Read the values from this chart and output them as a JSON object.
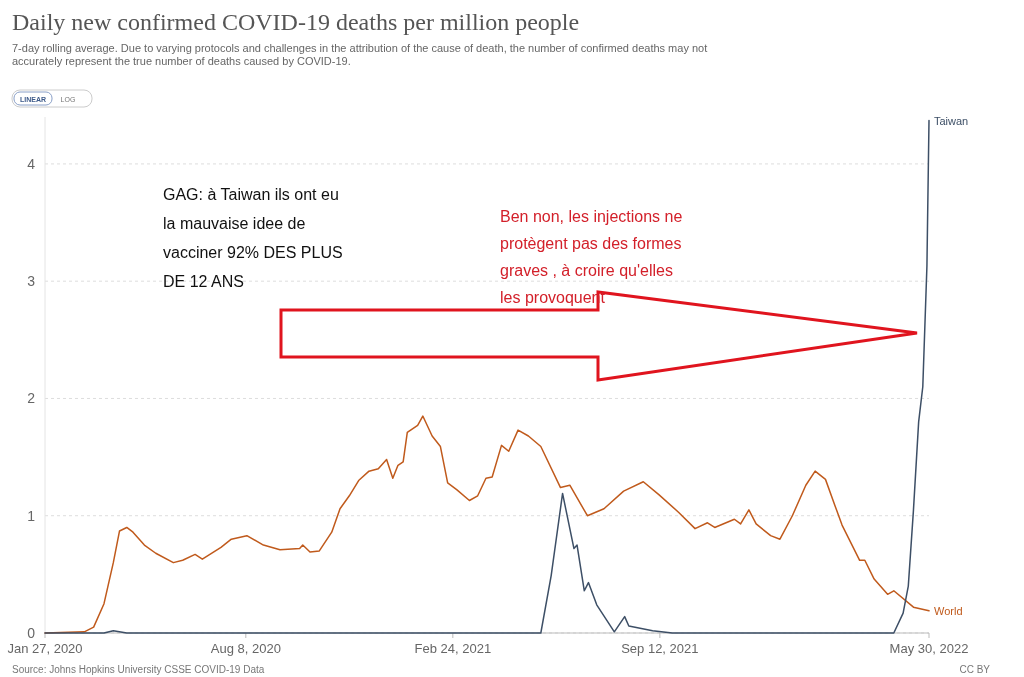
{
  "chart_data": {
    "type": "line",
    "title": "Daily new confirmed COVID-19 deaths per million people",
    "subtitle": "7-day rolling average. Due to varying protocols and challenges in the attribution of the cause of death, the number of confirmed deaths may not accurately represent the true number of deaths caused by COVID-19.",
    "annotations": [
      "GAG: à Taiwan ils ont eu\nla mauvaise idee de\nvacciner 92% DES PLUS\nDE 12 ANS",
      "Ben non, les injections ne\nprotègent pas des formes\ngraves , à croire qu'elles\nles provoquent",
      "Source: Johns Hopkins University CSSE COVID-19 Data",
      "CC BY",
      "LINEAR",
      "LOG"
    ],
    "xlim": [
      "2020-01-27",
      "2022-05-30"
    ],
    "xticks": [
      {
        "value": "2020-01-27",
        "label": "Jan 27, 2020"
      },
      {
        "value": "2020-08-08",
        "label": "Aug 8, 2020"
      },
      {
        "value": "2021-02-24",
        "label": "Feb 24, 2021"
      },
      {
        "value": "2021-09-12",
        "label": "Sep 12, 2021"
      },
      {
        "value": "2022-05-30",
        "label": "May 30, 2022"
      }
    ],
    "ylim": [
      0,
      4.4
    ],
    "yticks": [
      0,
      1,
      2,
      3,
      4
    ],
    "grid": "y",
    "line_style": "solid",
    "series": [
      {
        "name": "World",
        "color": "#c05a1c",
        "x": [
          "2020-01-27",
          "2020-03-05",
          "2020-03-14",
          "2020-03-24",
          "2020-04-02",
          "2020-04-08",
          "2020-04-15",
          "2020-04-21",
          "2020-05-02",
          "2020-05-13",
          "2020-05-30",
          "2020-06-08",
          "2020-06-20",
          "2020-06-27",
          "2020-07-15",
          "2020-07-25",
          "2020-08-09",
          "2020-08-25",
          "2020-09-10",
          "2020-09-29",
          "2020-10-02",
          "2020-10-09",
          "2020-10-18",
          "2020-10-30",
          "2020-11-07",
          "2020-11-16",
          "2020-11-25",
          "2020-12-05",
          "2020-12-14",
          "2020-12-22",
          "2020-12-28",
          "2021-01-02",
          "2021-01-07",
          "2021-01-11",
          "2021-01-21",
          "2021-01-26",
          "2021-02-04",
          "2021-02-12",
          "2021-02-19",
          "2021-02-28",
          "2021-03-12",
          "2021-03-20",
          "2021-03-28",
          "2021-04-03",
          "2021-04-12",
          "2021-04-19",
          "2021-04-28",
          "2021-05-08",
          "2021-05-20",
          "2021-06-08",
          "2021-06-17",
          "2021-07-04",
          "2021-07-20",
          "2021-08-08",
          "2021-08-27",
          "2021-09-11",
          "2021-09-30",
          "2021-10-16",
          "2021-10-28",
          "2021-11-04",
          "2021-11-23",
          "2021-11-29",
          "2021-12-07",
          "2021-12-14",
          "2021-12-28",
          "2022-01-06",
          "2022-01-18",
          "2022-01-31",
          "2022-02-09",
          "2022-02-19",
          "2022-02-28",
          "2022-03-07",
          "2022-03-24",
          "2022-03-29",
          "2022-04-07",
          "2022-04-20",
          "2022-04-26",
          "2022-05-15",
          "2022-05-30"
        ],
        "values": [
          0,
          0.01,
          0.05,
          0.25,
          0.6,
          0.87,
          0.9,
          0.86,
          0.75,
          0.68,
          0.6,
          0.62,
          0.67,
          0.63,
          0.73,
          0.8,
          0.83,
          0.75,
          0.71,
          0.72,
          0.75,
          0.69,
          0.7,
          0.86,
          1.06,
          1.17,
          1.3,
          1.38,
          1.4,
          1.48,
          1.32,
          1.43,
          1.46,
          1.71,
          1.77,
          1.85,
          1.68,
          1.59,
          1.28,
          1.22,
          1.13,
          1.17,
          1.32,
          1.33,
          1.6,
          1.55,
          1.73,
          1.68,
          1.59,
          1.24,
          1.26,
          1,
          1.06,
          1.21,
          1.29,
          1.18,
          1.03,
          0.89,
          0.94,
          0.9,
          0.97,
          0.93,
          1.05,
          0.93,
          0.83,
          0.8,
          1,
          1.26,
          1.38,
          1.31,
          1.09,
          0.92,
          0.62,
          0.62,
          0.46,
          0.33,
          0.36,
          0.22,
          0.19
        ]
      },
      {
        "name": "Taiwan",
        "color": "#3d4f66",
        "x": [
          "2020-01-27",
          "2020-03-24",
          "2020-04-02",
          "2020-04-15",
          "2021-05-20",
          "2021-05-30",
          "2021-06-10",
          "2021-06-21",
          "2021-06-24",
          "2021-07-01",
          "2021-07-05",
          "2021-07-13",
          "2021-07-30",
          "2021-08-09",
          "2021-08-13",
          "2021-09-05",
          "2021-09-24",
          "2022-04-26",
          "2022-05-05",
          "2022-05-10",
          "2022-05-15",
          "2022-05-20",
          "2022-05-24",
          "2022-05-28",
          "2022-05-30"
        ],
        "values": [
          0,
          0,
          0.02,
          0,
          0,
          0.49,
          1.19,
          0.72,
          0.75,
          0.36,
          0.43,
          0.24,
          0.01,
          0.14,
          0.06,
          0.02,
          0,
          0,
          0.17,
          0.4,
          1.05,
          1.8,
          2.1,
          3.13,
          4.37
        ]
      }
    ]
  }
}
